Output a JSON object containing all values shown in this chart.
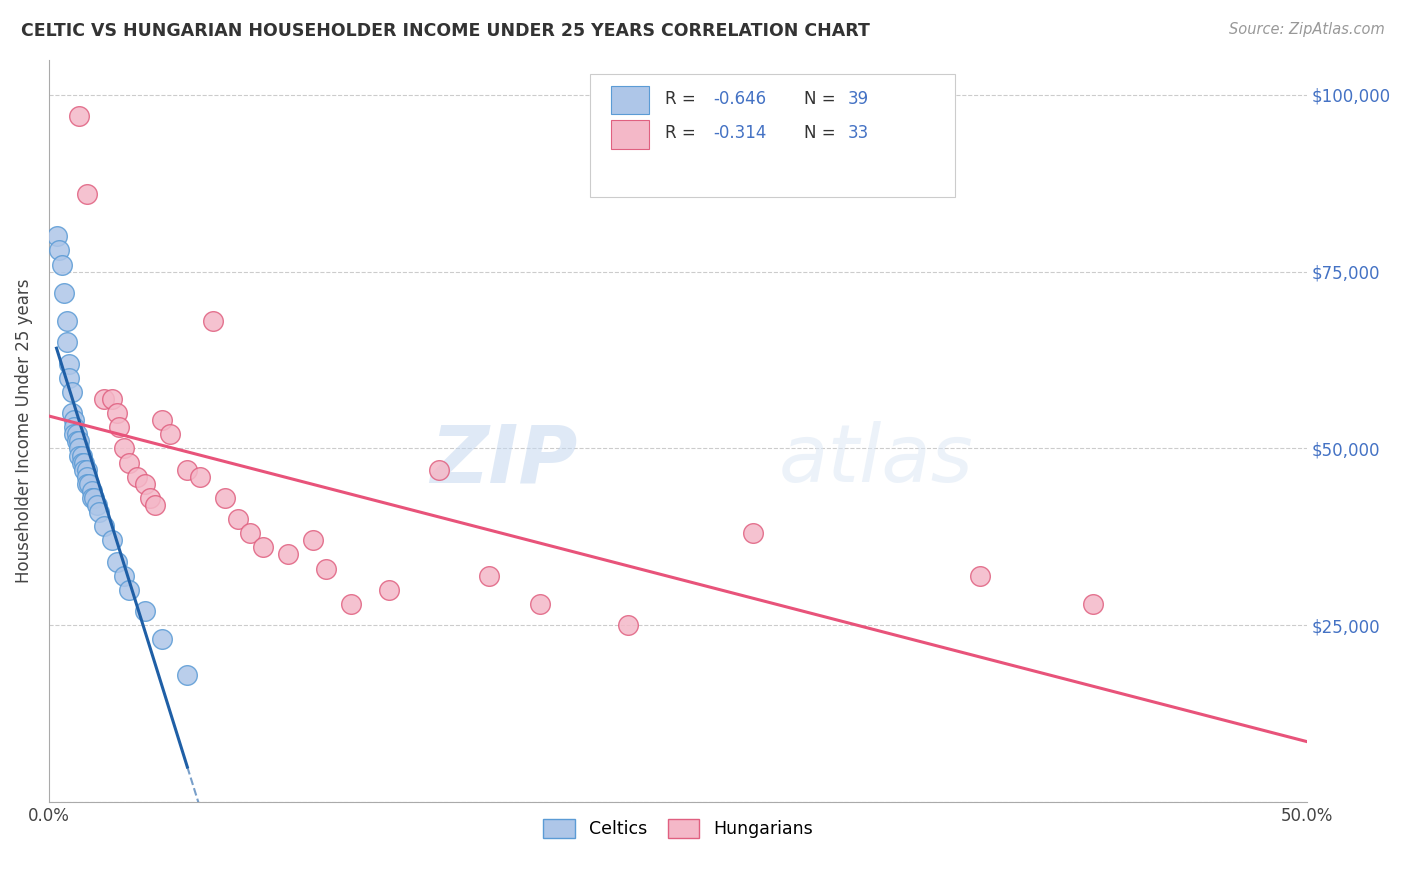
{
  "title": "CELTIC VS HUNGARIAN HOUSEHOLDER INCOME UNDER 25 YEARS CORRELATION CHART",
  "source": "Source: ZipAtlas.com",
  "ylabel": "Householder Income Under 25 years",
  "xlim": [
    0.0,
    0.5
  ],
  "ylim": [
    0,
    105000
  ],
  "yticks": [
    0,
    25000,
    50000,
    75000,
    100000
  ],
  "ytick_labels": [
    "",
    "$25,000",
    "$50,000",
    "$75,000",
    "$100,000"
  ],
  "xticks": [
    0.0,
    0.1,
    0.2,
    0.3,
    0.4,
    0.5
  ],
  "xtick_labels": [
    "0.0%",
    "",
    "",
    "",
    "",
    "50.0%"
  ],
  "watermark_zip": "ZIP",
  "watermark_atlas": "atlas",
  "celtics_color": "#aec6e8",
  "celtics_edge_color": "#5b9bd5",
  "hungarians_color": "#f4b8c8",
  "hungarians_edge_color": "#e06080",
  "celtics_line_color": "#1f5fa6",
  "hungarians_line_color": "#e8537a",
  "celtics_r": "-0.646",
  "celtics_n": "39",
  "hungarians_r": "-0.314",
  "hungarians_n": "33",
  "legend_color_celtics": "#aec6e8",
  "legend_color_hungarians": "#f4b8c8",
  "legend_edge_celtics": "#5b9bd5",
  "legend_edge_hungarians": "#e06080",
  "text_blue": "#4472c4",
  "text_pink": "#e06080",
  "celtics_x": [
    0.003,
    0.004,
    0.005,
    0.006,
    0.007,
    0.007,
    0.008,
    0.008,
    0.009,
    0.009,
    0.01,
    0.01,
    0.01,
    0.011,
    0.011,
    0.012,
    0.012,
    0.012,
    0.013,
    0.013,
    0.014,
    0.014,
    0.015,
    0.015,
    0.015,
    0.016,
    0.017,
    0.017,
    0.018,
    0.019,
    0.02,
    0.022,
    0.025,
    0.027,
    0.03,
    0.032,
    0.038,
    0.045,
    0.055
  ],
  "celtics_y": [
    80000,
    78000,
    76000,
    72000,
    68000,
    65000,
    62000,
    60000,
    58000,
    55000,
    54000,
    53000,
    52000,
    52000,
    51000,
    51000,
    50000,
    49000,
    49000,
    48000,
    48000,
    47000,
    47000,
    46000,
    45000,
    45000,
    44000,
    43000,
    43000,
    42000,
    41000,
    39000,
    37000,
    34000,
    32000,
    30000,
    27000,
    23000,
    18000
  ],
  "hungarians_x": [
    0.012,
    0.015,
    0.022,
    0.025,
    0.027,
    0.028,
    0.03,
    0.032,
    0.035,
    0.038,
    0.04,
    0.042,
    0.045,
    0.048,
    0.055,
    0.06,
    0.065,
    0.07,
    0.075,
    0.08,
    0.085,
    0.095,
    0.105,
    0.11,
    0.12,
    0.135,
    0.155,
    0.175,
    0.195,
    0.23,
    0.28,
    0.37,
    0.415
  ],
  "hungarians_y": [
    97000,
    86000,
    57000,
    57000,
    55000,
    53000,
    50000,
    48000,
    46000,
    45000,
    43000,
    42000,
    54000,
    52000,
    47000,
    46000,
    68000,
    43000,
    40000,
    38000,
    36000,
    35000,
    37000,
    33000,
    28000,
    30000,
    47000,
    32000,
    28000,
    25000,
    38000,
    32000,
    28000
  ]
}
